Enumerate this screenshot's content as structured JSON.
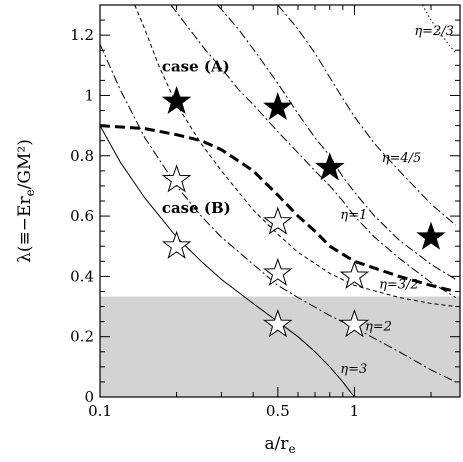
{
  "chart_data": {
    "type": "scatter",
    "title": "",
    "xlabel": "a/r",
    "xlabel_sub": "e",
    "ylabel_pre": "λ(≡−Er",
    "ylabel_sub": "e",
    "ylabel_post": "/GM²)",
    "xscale": "log",
    "xlim": [
      0.1,
      2.6
    ],
    "ylim": [
      0,
      1.3
    ],
    "x_ticks": [
      {
        "value": 0.1,
        "label": "0.1"
      },
      {
        "value": 0.5,
        "label": "0.5"
      },
      {
        "value": 1,
        "label": "1"
      }
    ],
    "x_minor_ticks": [
      0.2,
      0.3,
      0.4,
      0.6,
      0.7,
      0.8,
      0.9,
      2
    ],
    "y_ticks": [
      {
        "value": 0,
        "label": "0"
      },
      {
        "value": 0.2,
        "label": "0.2"
      },
      {
        "value": 0.4,
        "label": "0.4"
      },
      {
        "value": 0.6,
        "label": "0.6"
      },
      {
        "value": 0.8,
        "label": "0.8"
      },
      {
        "value": 1,
        "label": "1"
      },
      {
        "value": 1.2,
        "label": "1.2"
      }
    ],
    "shaded_region": {
      "y_min": 0,
      "y_max": 0.333,
      "color": "#d3d3d3"
    },
    "curves": [
      {
        "label": "η=2/3",
        "style": "dotted",
        "points": [
          [
            1.85,
            1.3
          ],
          [
            2.0,
            1.25
          ],
          [
            2.2,
            1.2
          ],
          [
            2.5,
            1.14
          ]
        ]
      },
      {
        "label": "η=4/5",
        "style": "dashdot",
        "points": [
          [
            0.5,
            1.3
          ],
          [
            0.6,
            1.22
          ],
          [
            0.7,
            1.14
          ],
          [
            0.8,
            1.06
          ],
          [
            0.9,
            0.99
          ],
          [
            1.0,
            0.93
          ],
          [
            1.2,
            0.84
          ],
          [
            1.5,
            0.75
          ],
          [
            2.0,
            0.64
          ],
          [
            2.5,
            0.57
          ]
        ]
      },
      {
        "label": "η=1",
        "style": "dashdot",
        "points": [
          [
            0.29,
            1.3
          ],
          [
            0.35,
            1.22
          ],
          [
            0.42,
            1.13
          ],
          [
            0.5,
            1.04
          ],
          [
            0.6,
            0.94
          ],
          [
            0.7,
            0.86
          ],
          [
            0.8,
            0.8
          ],
          [
            0.9,
            0.73
          ],
          [
            1.0,
            0.68
          ],
          [
            1.2,
            0.6
          ],
          [
            1.5,
            0.52
          ],
          [
            2.0,
            0.44
          ],
          [
            2.5,
            0.39
          ]
        ]
      },
      {
        "label": "",
        "style": "dashdot",
        "points": [
          [
            0.19,
            1.3
          ],
          [
            0.22,
            1.23
          ],
          [
            0.26,
            1.15
          ],
          [
            0.3,
            1.09
          ],
          [
            0.35,
            1.02
          ],
          [
            0.4,
            0.97
          ],
          [
            0.5,
            0.88
          ],
          [
            0.6,
            0.81
          ],
          [
            0.7,
            0.75
          ],
          [
            0.8,
            0.7
          ],
          [
            0.9,
            0.65
          ],
          [
            1.0,
            0.6
          ],
          [
            1.2,
            0.53
          ],
          [
            1.5,
            0.46
          ],
          [
            2.0,
            0.38
          ],
          [
            2.5,
            0.33
          ]
        ]
      },
      {
        "label": "η=3/2",
        "style": "dashed",
        "points": [
          [
            0.137,
            1.3
          ],
          [
            0.15,
            1.22
          ],
          [
            0.17,
            1.1
          ],
          [
            0.2,
            0.97
          ],
          [
            0.25,
            0.84
          ],
          [
            0.3,
            0.75
          ],
          [
            0.4,
            0.62
          ],
          [
            0.5,
            0.54
          ],
          [
            0.6,
            0.48
          ],
          [
            0.8,
            0.41
          ],
          [
            1.0,
            0.37
          ],
          [
            1.5,
            0.33
          ],
          [
            2.0,
            0.31
          ],
          [
            2.5,
            0.3
          ]
        ]
      },
      {
        "label": "η=2",
        "style": "dashdot",
        "points": [
          [
            0.1,
            1.17
          ],
          [
            0.12,
            1.02
          ],
          [
            0.15,
            0.86
          ],
          [
            0.2,
            0.7
          ],
          [
            0.25,
            0.6
          ],
          [
            0.3,
            0.53
          ],
          [
            0.4,
            0.44
          ],
          [
            0.5,
            0.37
          ],
          [
            0.6,
            0.33
          ],
          [
            0.8,
            0.27
          ],
          [
            1.0,
            0.23
          ],
          [
            1.5,
            0.15
          ],
          [
            2.0,
            0.09
          ],
          [
            2.5,
            0.05
          ]
        ]
      },
      {
        "label": "η=3",
        "style": "solid",
        "points": [
          [
            0.1,
            0.9
          ],
          [
            0.12,
            0.78
          ],
          [
            0.15,
            0.66
          ],
          [
            0.2,
            0.53
          ],
          [
            0.25,
            0.45
          ],
          [
            0.3,
            0.39
          ],
          [
            0.4,
            0.31
          ],
          [
            0.5,
            0.25
          ],
          [
            0.6,
            0.2
          ],
          [
            0.7,
            0.15
          ],
          [
            0.8,
            0.1
          ],
          [
            0.9,
            0.05
          ],
          [
            1.0,
            0.0
          ]
        ]
      },
      {
        "label": "",
        "style": "thick-dashed",
        "points": [
          [
            0.1,
            0.9
          ],
          [
            0.15,
            0.89
          ],
          [
            0.2,
            0.87
          ],
          [
            0.25,
            0.85
          ],
          [
            0.3,
            0.82
          ],
          [
            0.4,
            0.75
          ],
          [
            0.5,
            0.67
          ],
          [
            0.6,
            0.6
          ],
          [
            0.7,
            0.55
          ],
          [
            0.8,
            0.5
          ],
          [
            1.0,
            0.45
          ],
          [
            1.5,
            0.4
          ],
          [
            2.0,
            0.37
          ],
          [
            2.5,
            0.35
          ]
        ]
      }
    ],
    "series": [
      {
        "name": "case (A)",
        "marker": "filled-star",
        "points": [
          [
            0.2,
            0.98
          ],
          [
            0.5,
            0.96
          ],
          [
            0.8,
            0.76
          ],
          [
            2.0,
            0.53
          ]
        ]
      },
      {
        "name": "case (B)",
        "marker": "open-star",
        "points": [
          [
            0.2,
            0.72
          ],
          [
            0.2,
            0.5
          ],
          [
            0.5,
            0.58
          ],
          [
            0.5,
            0.41
          ],
          [
            0.5,
            0.24
          ],
          [
            1.0,
            0.4
          ],
          [
            1.0,
            0.24
          ]
        ]
      }
    ],
    "annotations": [
      {
        "text": "case (A)",
        "x": 0.175,
        "y": 1.08,
        "bold": true
      },
      {
        "text": "case (B)",
        "x": 0.175,
        "y": 0.61,
        "bold": true
      },
      {
        "text": "η=2/3",
        "x": 1.72,
        "y": 1.2
      },
      {
        "text": "η=4/5",
        "x": 1.28,
        "y": 0.78
      },
      {
        "text": "η=1",
        "x": 0.88,
        "y": 0.59
      },
      {
        "text": "η=3/2",
        "x": 1.25,
        "y": 0.36
      },
      {
        "text": "η=2",
        "x": 1.1,
        "y": 0.22
      },
      {
        "text": "η=3",
        "x": 0.88,
        "y": 0.08
      }
    ],
    "grid": false,
    "legend": "none"
  }
}
